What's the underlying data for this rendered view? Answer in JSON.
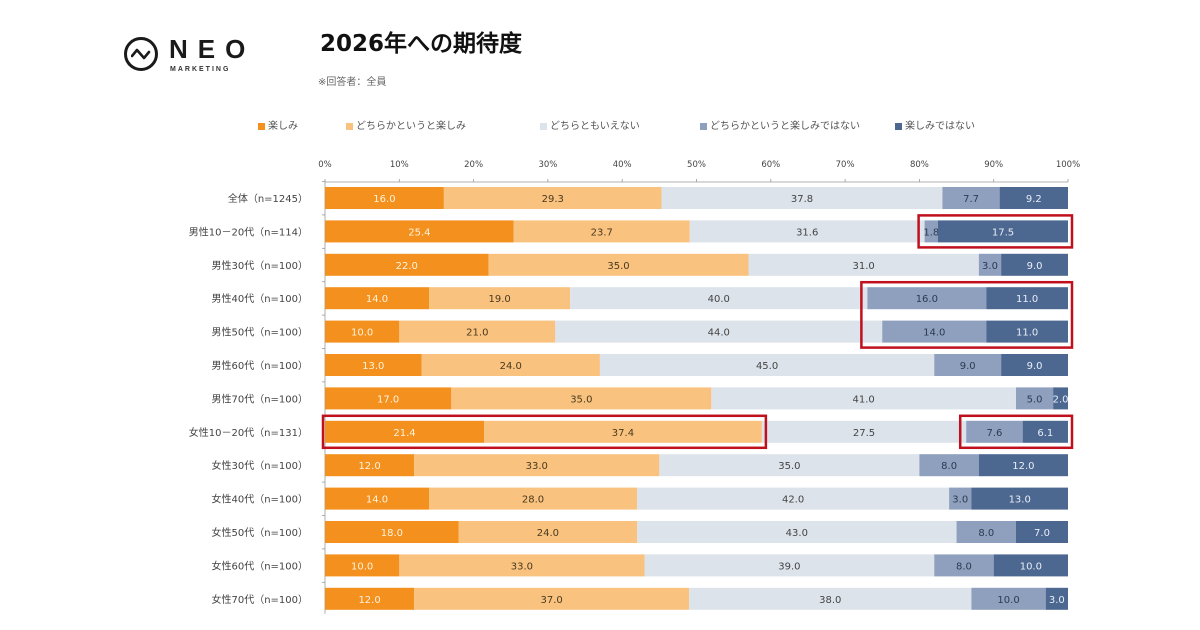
{
  "logo": {
    "name": "NEO",
    "sub": "MARKETING"
  },
  "header": {
    "title": "2026年への期待度",
    "subtitle": "※回答者：全員"
  },
  "colors": {
    "very_positive": "#F3901E",
    "positive": "#F9C27E",
    "neutral": "#DDE3EB",
    "negative": "#8EA0BD",
    "very_negative": "#4C6790",
    "highlight": "#C0101E"
  },
  "chart_data": {
    "type": "bar",
    "orientation": "horizontal-stacked-100",
    "title": "2026年への期待度",
    "xlim": [
      0,
      100
    ],
    "xticks": [
      "0%",
      "10%",
      "20%",
      "30%",
      "40%",
      "50%",
      "60%",
      "70%",
      "80%",
      "90%",
      "100%"
    ],
    "legend_position": "top",
    "categories": [
      "全体（n=1245）",
      "男性10－20代（n=114）",
      "男性30代（n=100）",
      "男性40代（n=100）",
      "男性50代（n=100）",
      "男性60代（n=100）",
      "男性70代（n=100）",
      "女性10－20代（n=131）",
      "女性30代（n=100）",
      "女性40代（n=100）",
      "女性50代（n=100）",
      "女性60代（n=100）",
      "女性70代（n=100）"
    ],
    "series": [
      {
        "name": "楽しみ",
        "key": "very_positive",
        "values": [
          16.0,
          25.4,
          22.0,
          14.0,
          10.0,
          13.0,
          17.0,
          21.4,
          12.0,
          14.0,
          18.0,
          10.0,
          12.0
        ]
      },
      {
        "name": "どちらかというと楽しみ",
        "key": "positive",
        "values": [
          29.3,
          23.7,
          35.0,
          19.0,
          21.0,
          24.0,
          35.0,
          37.4,
          33.0,
          28.0,
          24.0,
          33.0,
          37.0
        ]
      },
      {
        "name": "どちらともいえない",
        "key": "neutral",
        "values": [
          37.8,
          31.6,
          31.0,
          40.0,
          44.0,
          45.0,
          41.0,
          27.5,
          35.0,
          42.0,
          43.0,
          39.0,
          38.0
        ]
      },
      {
        "name": "どちらかというと楽しみではない",
        "key": "negative",
        "values": [
          7.7,
          1.8,
          3.0,
          16.0,
          14.0,
          9.0,
          5.0,
          7.6,
          8.0,
          3.0,
          8.0,
          8.0,
          10.0
        ]
      },
      {
        "name": "楽しみではない",
        "key": "very_negative",
        "values": [
          9.2,
          17.5,
          9.0,
          11.0,
          11.0,
          9.0,
          2.0,
          6.1,
          12.0,
          13.0,
          7.0,
          10.0,
          3.0
        ]
      }
    ],
    "highlights": [
      {
        "rows": [
          1,
          1
        ],
        "series": [
          3,
          4
        ]
      },
      {
        "rows": [
          3,
          4
        ],
        "series": [
          3,
          4
        ]
      },
      {
        "rows": [
          7,
          7
        ],
        "series": [
          0,
          1
        ]
      },
      {
        "rows": [
          7,
          7
        ],
        "series": [
          3,
          4
        ]
      }
    ]
  }
}
